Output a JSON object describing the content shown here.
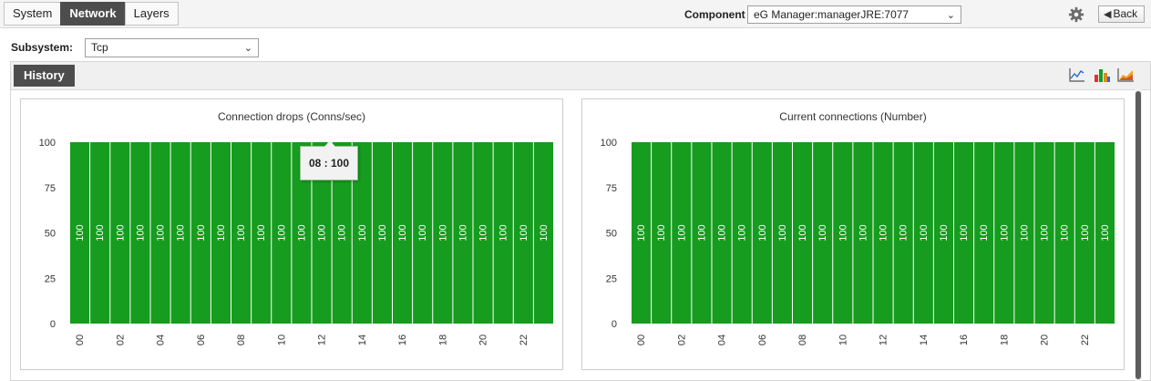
{
  "tabs": [
    {
      "label": "System",
      "active": false
    },
    {
      "label": "Network",
      "active": true
    },
    {
      "label": "Layers",
      "active": false
    }
  ],
  "component": {
    "label": "Component",
    "value": "eG Manager:managerJRE:7077"
  },
  "back_label": "Back",
  "subsystem": {
    "label": "Subsystem:",
    "value": "Tcp"
  },
  "history_label": "History",
  "view_icons": [
    "line-chart-icon",
    "bar-chart-icon",
    "area-chart-icon"
  ],
  "colors": {
    "bar": "#169c1e",
    "accent": "#4d4d4d"
  },
  "tooltip": {
    "text": "08 : 100"
  },
  "chart_data": [
    {
      "type": "bar",
      "title": "Connection drops (Conns/sec)",
      "categories": [
        "00",
        "01",
        "02",
        "03",
        "04",
        "05",
        "06",
        "07",
        "08",
        "09",
        "10",
        "11",
        "12",
        "13",
        "14",
        "15",
        "16",
        "17",
        "18",
        "19",
        "20",
        "21",
        "22",
        "23"
      ],
      "tick_labels": [
        "00",
        "02",
        "04",
        "06",
        "08",
        "10",
        "12",
        "14",
        "16",
        "18",
        "20",
        "22"
      ],
      "values": [
        100,
        100,
        100,
        100,
        100,
        100,
        100,
        100,
        100,
        100,
        100,
        100,
        100,
        100,
        100,
        100,
        100,
        100,
        100,
        100,
        100,
        100,
        100,
        100
      ],
      "ylim": [
        0,
        100
      ],
      "yticks": [
        0,
        25,
        50,
        75,
        100
      ],
      "data_labels": true,
      "grid": false
    },
    {
      "type": "bar",
      "title": "Current connections (Number)",
      "categories": [
        "00",
        "01",
        "02",
        "03",
        "04",
        "05",
        "06",
        "07",
        "08",
        "09",
        "10",
        "11",
        "12",
        "13",
        "14",
        "15",
        "16",
        "17",
        "18",
        "19",
        "20",
        "21",
        "22",
        "23"
      ],
      "tick_labels": [
        "00",
        "02",
        "04",
        "06",
        "08",
        "10",
        "12",
        "14",
        "16",
        "18",
        "20",
        "22"
      ],
      "values": [
        100,
        100,
        100,
        100,
        100,
        100,
        100,
        100,
        100,
        100,
        100,
        100,
        100,
        100,
        100,
        100,
        100,
        100,
        100,
        100,
        100,
        100,
        100,
        100
      ],
      "ylim": [
        0,
        100
      ],
      "yticks": [
        0,
        25,
        50,
        75,
        100
      ],
      "data_labels": true,
      "grid": false
    }
  ]
}
